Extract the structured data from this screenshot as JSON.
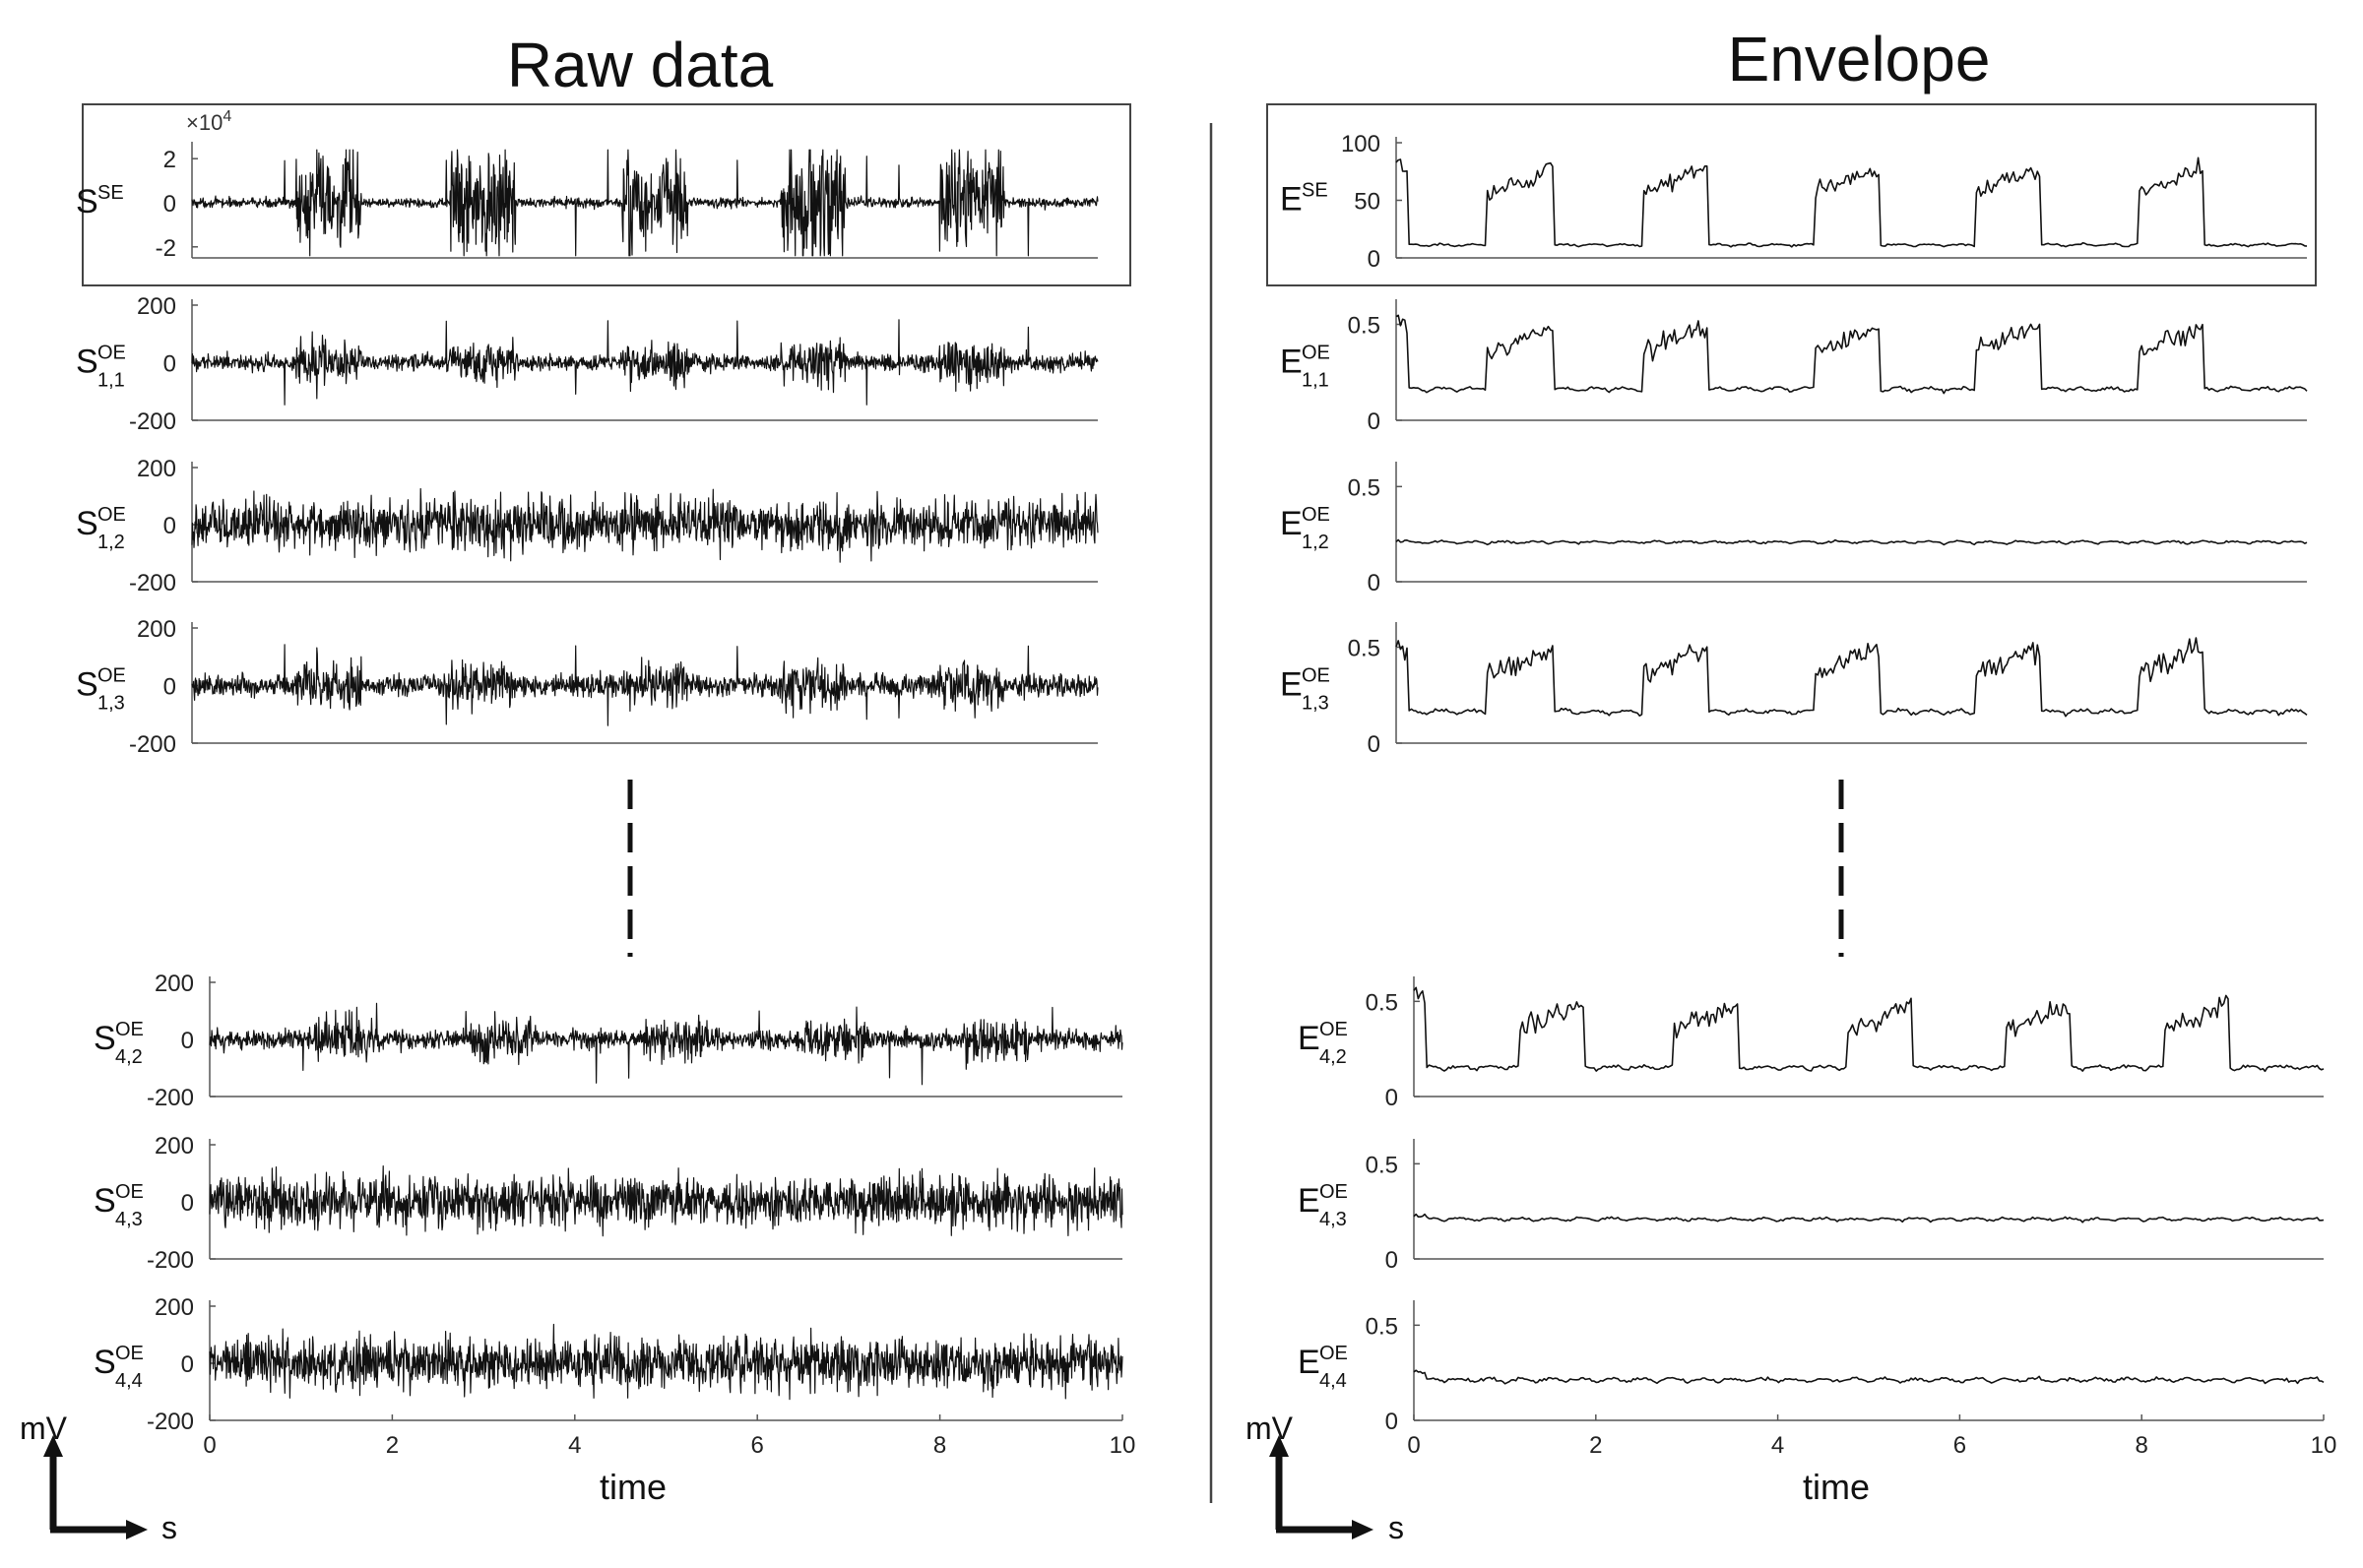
{
  "figure": {
    "left_title": "Raw data",
    "right_title": "Envelope",
    "xlabel": "time",
    "scale_bar": {
      "vertical_unit": "mV",
      "horizontal_unit": "s"
    },
    "exponent_label": "×10",
    "exponent_power": "4"
  },
  "colors": {
    "trace": "#111111",
    "axis": "#555555",
    "frame": "#444444"
  },
  "chart_data": [
    {
      "id": "raw-sse",
      "type": "line",
      "side": "raw",
      "label_base": "S",
      "label_sup": "SE",
      "label_sub": "",
      "xlim": [
        0,
        10
      ],
      "ylim": [
        -2.5,
        2.5
      ],
      "yticks": [
        "2",
        "0",
        "-2"
      ],
      "ytick_values": [
        2,
        0,
        -2
      ],
      "scale_note": "x10^4",
      "framed": true,
      "bursts": [
        1.15,
        2.85,
        4.75,
        6.5,
        8.25
      ],
      "burst_width": 0.72,
      "signal": "spikes+bursts",
      "noise": 0.08,
      "burst_amp": 0.95,
      "spike_period": 0.357,
      "spike_amp": 1.05
    },
    {
      "id": "raw-s11",
      "type": "line",
      "side": "raw",
      "label_base": "S",
      "label_sup": "OE",
      "label_sub": "1,1",
      "xlim": [
        0,
        10
      ],
      "ylim": [
        -200,
        200
      ],
      "yticks": [
        "200",
        "0",
        "-200"
      ],
      "ytick_values": [
        200,
        0,
        -200
      ],
      "bursts": [
        1.15,
        2.85,
        4.75,
        6.5,
        8.25
      ],
      "burst_width": 0.72,
      "signal": "spikes+bursts",
      "noise": 0.14,
      "burst_amp": 0.35,
      "spike_period": 0.357,
      "spike_amp": 0.8
    },
    {
      "id": "raw-s12",
      "type": "line",
      "side": "raw",
      "label_base": "S",
      "label_sup": "OE",
      "label_sub": "1,2",
      "xlim": [
        0,
        10
      ],
      "ylim": [
        -200,
        200
      ],
      "yticks": [
        "200",
        "0",
        "-200"
      ],
      "ytick_values": [
        200,
        0,
        -200
      ],
      "bursts": [],
      "signal": "noise",
      "noise": 0.42,
      "spike_period": 0,
      "spike_amp": 0
    },
    {
      "id": "raw-s13",
      "type": "line",
      "side": "raw",
      "label_base": "S",
      "label_sup": "OE",
      "label_sub": "1,3",
      "xlim": [
        0,
        10
      ],
      "ylim": [
        -200,
        200
      ],
      "yticks": [
        "200",
        "0",
        "-200"
      ],
      "ytick_values": [
        200,
        0,
        -200
      ],
      "bursts": [
        1.15,
        2.85,
        4.75,
        6.5,
        8.25
      ],
      "burst_width": 0.72,
      "signal": "spikes+bursts",
      "noise": 0.18,
      "burst_amp": 0.38,
      "spike_period": 0.357,
      "spike_amp": 0.8
    },
    {
      "id": "raw-s42",
      "type": "line",
      "side": "raw",
      "label_base": "S",
      "label_sup": "OE",
      "label_sub": "4,2",
      "xlim": [
        0,
        10
      ],
      "ylim": [
        -200,
        200
      ],
      "yticks": [
        "200",
        "0",
        "-200"
      ],
      "ytick_values": [
        200,
        0,
        -200
      ],
      "bursts": [
        1.15,
        2.85,
        4.75,
        6.5,
        8.25
      ],
      "burst_width": 0.72,
      "signal": "spikes+bursts",
      "noise": 0.16,
      "burst_amp": 0.36,
      "spike_period": 0.357,
      "spike_amp": 0.8
    },
    {
      "id": "raw-s43",
      "type": "line",
      "side": "raw",
      "label_base": "S",
      "label_sup": "OE",
      "label_sub": "4,3",
      "xlim": [
        0,
        10
      ],
      "ylim": [
        -200,
        200
      ],
      "yticks": [
        "200",
        "0",
        "-200"
      ],
      "ytick_values": [
        200,
        0,
        -200
      ],
      "bursts": [],
      "signal": "noise",
      "noise": 0.42,
      "spike_period": 0,
      "spike_amp": 0
    },
    {
      "id": "raw-s44",
      "type": "line",
      "side": "raw",
      "label_base": "S",
      "label_sup": "OE",
      "label_sub": "4,4",
      "xlim": [
        0,
        10
      ],
      "ylim": [
        -200,
        200
      ],
      "yticks": [
        "200",
        "0",
        "-200"
      ],
      "ytick_values": [
        200,
        0,
        -200
      ],
      "bursts": [],
      "signal": "noise",
      "noise": 0.42,
      "spike_period": 0,
      "spike_amp": 0
    },
    {
      "id": "env-ese",
      "type": "line",
      "side": "env",
      "label_base": "E",
      "label_sup": "SE",
      "label_sub": "",
      "xlim": [
        0,
        10
      ],
      "ylim": [
        0,
        100
      ],
      "yticks": [
        "100",
        "50",
        "0"
      ],
      "ytick_values": [
        100,
        50,
        0
      ],
      "framed": true,
      "bursts": [
        1.0,
        2.7,
        4.6,
        6.35,
        8.15
      ],
      "burst_width": 0.72,
      "baseline": 10,
      "burst_level": 72,
      "start_level": 85,
      "jitter": 7,
      "ripple": 2
    },
    {
      "id": "env-e11",
      "type": "line",
      "side": "env",
      "label_base": "E",
      "label_sup": "OE",
      "label_sub": "1,1",
      "xlim": [
        0,
        10
      ],
      "ylim": [
        0,
        0.6
      ],
      "yticks": [
        "0.5",
        "0"
      ],
      "ytick_values": [
        0.5,
        0
      ],
      "bursts": [
        1.0,
        2.7,
        4.6,
        6.35,
        8.15
      ],
      "burst_width": 0.72,
      "baseline": 0.15,
      "burst_level": 0.45,
      "start_level": 0.55,
      "jitter": 0.05,
      "ripple": 0.02
    },
    {
      "id": "env-e12",
      "type": "line",
      "side": "env",
      "label_base": "E",
      "label_sup": "OE",
      "label_sub": "1,2",
      "xlim": [
        0,
        10
      ],
      "ylim": [
        0,
        0.6
      ],
      "yticks": [
        "0.5",
        "0"
      ],
      "ytick_values": [
        0.5,
        0
      ],
      "bursts": [],
      "baseline": 0.2,
      "burst_level": 0.2,
      "start_level": 0.22,
      "jitter": 0.01,
      "ripple": 0.012
    },
    {
      "id": "env-e13",
      "type": "line",
      "side": "env",
      "label_base": "E",
      "label_sup": "OE",
      "label_sub": "1,3",
      "xlim": [
        0,
        10
      ],
      "ylim": [
        0,
        0.6
      ],
      "yticks": [
        "0.5",
        "0"
      ],
      "ytick_values": [
        0.5,
        0
      ],
      "bursts": [
        1.0,
        2.7,
        4.6,
        6.35,
        8.15
      ],
      "burst_width": 0.72,
      "baseline": 0.15,
      "burst_level": 0.46,
      "start_level": 0.55,
      "jitter": 0.055,
      "ripple": 0.022
    },
    {
      "id": "env-e42",
      "type": "line",
      "side": "env",
      "label_base": "E",
      "label_sup": "OE",
      "label_sub": "4,2",
      "xlim": [
        0,
        10
      ],
      "ylim": [
        0,
        0.6
      ],
      "yticks": [
        "0.5",
        "0"
      ],
      "ytick_values": [
        0.5,
        0
      ],
      "bursts": [
        1.15,
        2.85,
        4.75,
        6.5,
        8.25
      ],
      "burst_width": 0.72,
      "baseline": 0.14,
      "burst_level": 0.45,
      "start_level": 0.55,
      "jitter": 0.05,
      "ripple": 0.02
    },
    {
      "id": "env-e43",
      "type": "line",
      "side": "env",
      "label_base": "E",
      "label_sup": "OE",
      "label_sub": "4,3",
      "xlim": [
        0,
        10
      ],
      "ylim": [
        0,
        0.6
      ],
      "yticks": [
        "0.5",
        "0"
      ],
      "ytick_values": [
        0.5,
        0
      ],
      "bursts": [],
      "baseline": 0.2,
      "burst_level": 0.2,
      "start_level": 0.23,
      "jitter": 0.01,
      "ripple": 0.014
    },
    {
      "id": "env-e44",
      "type": "line",
      "side": "env",
      "label_base": "E",
      "label_sup": "OE",
      "label_sub": "4,4",
      "xlim": [
        0,
        10
      ],
      "ylim": [
        0,
        0.6
      ],
      "yticks": [
        "0.5",
        "0"
      ],
      "ytick_values": [
        0.5,
        0
      ],
      "bursts": [],
      "baseline": 0.2,
      "burst_level": 0.2,
      "start_level": 0.26,
      "jitter": 0.01,
      "ripple": 0.02
    }
  ],
  "xaxis": {
    "ticks": [
      "0",
      "2",
      "4",
      "6",
      "8",
      "10"
    ],
    "tick_values": [
      0,
      2,
      4,
      6,
      8,
      10
    ]
  }
}
